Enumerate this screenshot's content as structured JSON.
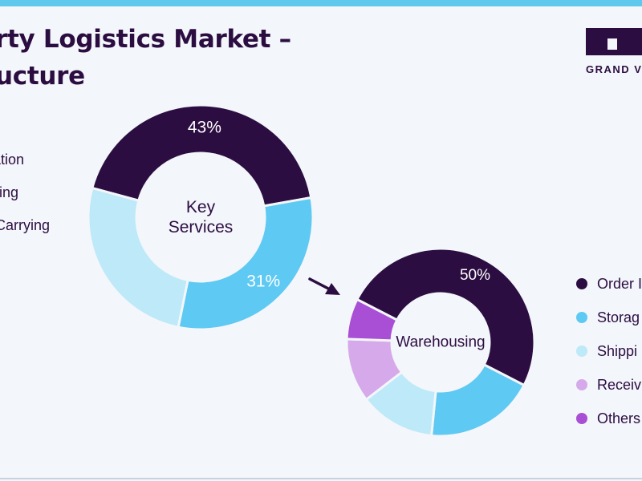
{
  "header": {
    "title_line1": "rty Logistics Market –",
    "title_line2": "ucture",
    "logo_text": "GRAND V"
  },
  "colors": {
    "dark_purple": "#2c0d41",
    "blue": "#5ec9f2",
    "light_blue": "#bde9f8",
    "lavender": "#d6a9ea",
    "violet": "#a94fd5",
    "accent_bar": "#5ec9ec"
  },
  "chart_data": [
    {
      "type": "pie",
      "center_label": "Key\nServices",
      "slices": [
        {
          "label": "rtation",
          "value": 43,
          "data_label": "43%",
          "color": "#2c0d41"
        },
        {
          "label": "using",
          "value": 31,
          "data_label": "31%",
          "color": "#5ec9f2"
        },
        {
          "label": "y Carrying\nn",
          "value": 26,
          "data_label": "",
          "color": "#bde9f8"
        }
      ]
    },
    {
      "type": "pie",
      "center_label": "Warehousing",
      "slices": [
        {
          "label": "Order I",
          "value": 50,
          "data_label": "50%",
          "color": "#2c0d41"
        },
        {
          "label": "Storag",
          "value": 19,
          "data_label": "",
          "color": "#5ec9f2"
        },
        {
          "label": "Shippi",
          "value": 13,
          "data_label": "",
          "color": "#bde9f8"
        },
        {
          "label": "Receiv",
          "value": 11,
          "data_label": "",
          "color": "#d6a9ea"
        },
        {
          "label": "Others",
          "value": 7,
          "data_label": "",
          "color": "#a94fd5"
        }
      ]
    }
  ]
}
